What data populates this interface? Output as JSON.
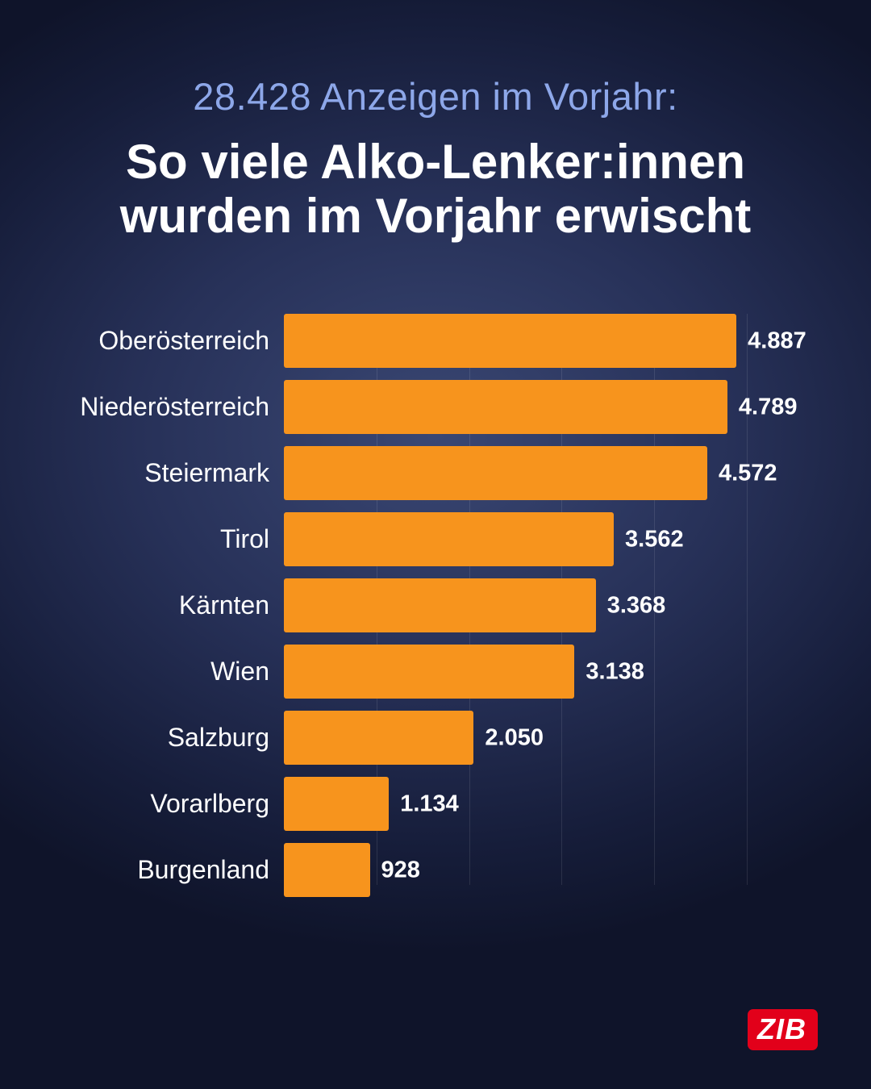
{
  "header": {
    "subtitle": "28.428 Anzeigen im Vorjahr:",
    "title_line1": "So viele Alko-Lenker:innen",
    "title_line2": "wurden im Vorjahr erwischt"
  },
  "chart_data": {
    "type": "bar",
    "orientation": "horizontal",
    "title": "So viele Alko-Lenker:innen wurden im Vorjahr erwischt",
    "subtitle": "28.428 Anzeigen im Vorjahr:",
    "categories": [
      "Oberösterreich",
      "Niederösterreich",
      "Steiermark",
      "Tirol",
      "Kärnten",
      "Wien",
      "Salzburg",
      "Vorarlberg",
      "Burgenland"
    ],
    "values": [
      4887,
      4789,
      4572,
      3562,
      3368,
      3138,
      2050,
      1134,
      928
    ],
    "value_labels": [
      "4.887",
      "4.789",
      "4.572",
      "3.562",
      "3.368",
      "3.138",
      "2.050",
      "1.134",
      "928"
    ],
    "total": 28428,
    "xlim": [
      0,
      5800
    ],
    "gridline_values": [
      1000,
      2000,
      3000,
      4000,
      5000
    ],
    "grid": true,
    "legend": false,
    "bar_color": "#f7941d"
  },
  "branding": {
    "logo_text": "ZIB",
    "logo_bg": "#e2001a"
  },
  "colors": {
    "background_center": "#3e4c7a",
    "background_edge": "#0f142a",
    "subtitle_text": "#8da7e9",
    "title_text": "#ffffff",
    "bar": "#f7941d"
  }
}
